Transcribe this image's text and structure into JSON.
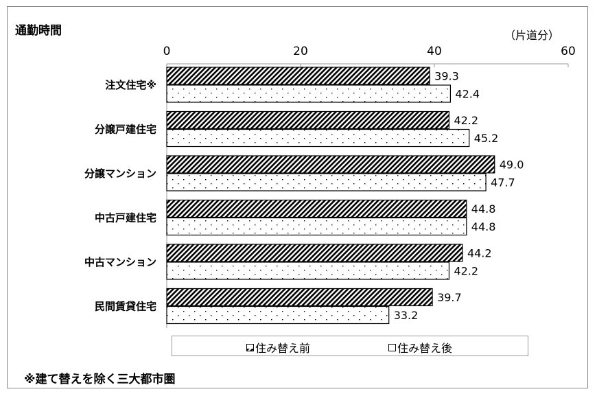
{
  "chart_data": {
    "type": "bar",
    "orientation": "horizontal",
    "title": "通勤時間",
    "unit_label": "（片道分）",
    "categories": [
      "注文住宅※",
      "分譲戸建住宅",
      "分譲マンション",
      "中古戸建住宅",
      "中古マンション",
      "民間賃貸住宅"
    ],
    "series": [
      {
        "name": "住み替え前",
        "values": [
          39.3,
          42.2,
          49.0,
          44.8,
          44.2,
          39.7
        ],
        "pattern": "diagonal-hatch"
      },
      {
        "name": "住み替え後",
        "values": [
          42.4,
          45.2,
          47.7,
          44.8,
          42.2,
          33.2
        ],
        "pattern": "dots"
      }
    ],
    "data_labels": [
      [
        "39.3",
        "42.2",
        "49.0",
        "44.8",
        "44.2",
        "39.7"
      ],
      [
        "42.4",
        "45.2",
        "47.7",
        "44.8",
        "42.2",
        "33.2"
      ]
    ],
    "xlim": [
      0,
      60
    ],
    "xticks": [
      "0",
      "20",
      "40",
      "60"
    ],
    "xaxis_position": "top",
    "grid": false,
    "legend_position": "bottom",
    "footnote": "※建て替えを除く三大都市圏"
  }
}
